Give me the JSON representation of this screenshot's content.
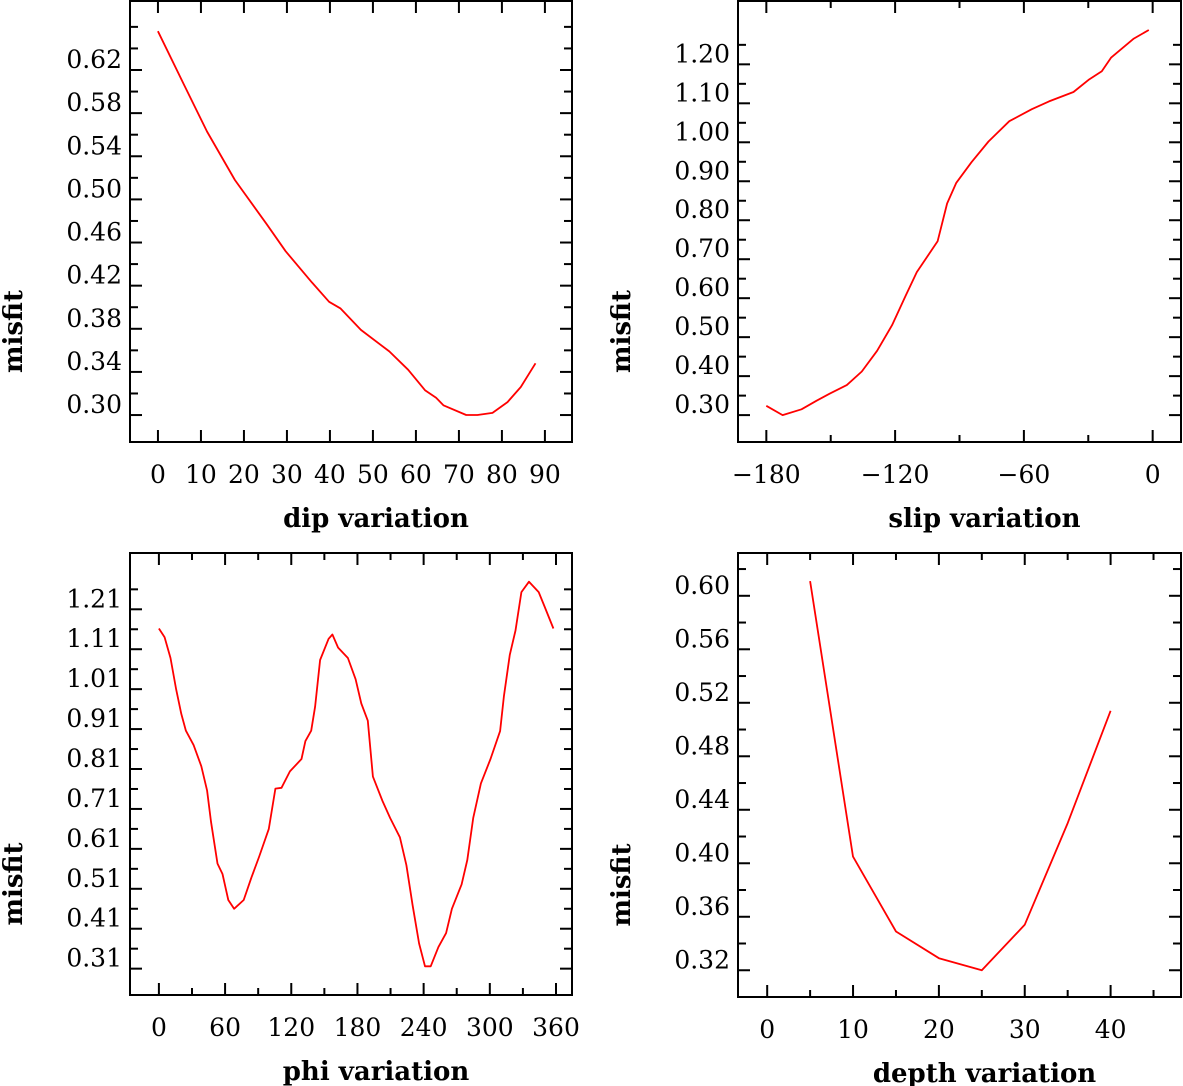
{
  "chart_data": [
    {
      "type": "line",
      "title": "",
      "xlabel": "dip    variation",
      "ylabel": "misfit",
      "xlim": [
        -6.5,
        96.3
      ],
      "ylim": [
        0.275,
        0.684
      ],
      "xticks": [
        0,
        10,
        20,
        30,
        40,
        50,
        60,
        70,
        80,
        90
      ],
      "xtick_labels": [
        "0",
        "10",
        "20",
        "30",
        "40",
        "50",
        "60",
        "70",
        "80",
        "90"
      ],
      "xminor": [],
      "yticks": [
        0.3,
        0.34,
        0.38,
        0.42,
        0.46,
        0.5,
        0.54,
        0.58,
        0.62
      ],
      "ytick_labels": [
        "0.30",
        "0.34",
        "0.38",
        "0.42",
        "0.46",
        "0.50",
        "0.54",
        "0.58",
        "0.62"
      ],
      "yminor": [
        0.32,
        0.36,
        0.4,
        0.44,
        0.48,
        0.52,
        0.56,
        0.6,
        0.64,
        0.66
      ],
      "grid": false,
      "line_color": "#ff0000",
      "series": [
        {
          "name": "dip",
          "x": [
            0,
            6.1,
            11.4,
            17.9,
            25.3,
            29.7,
            35.8,
            39.8,
            42.4,
            47.2,
            53.8,
            58.2,
            62.1,
            64.7,
            66.4,
            71.7,
            74.3,
            77.8,
            81.3,
            84.4,
            87.8
          ],
          "y": [
            0.656,
            0.606,
            0.563,
            0.518,
            0.477,
            0.452,
            0.423,
            0.405,
            0.399,
            0.379,
            0.359,
            0.342,
            0.323,
            0.316,
            0.309,
            0.3,
            0.3,
            0.302,
            0.312,
            0.326,
            0.348
          ]
        }
      ]
    },
    {
      "type": "line",
      "title": "",
      "xlabel": "slip   variation",
      "ylabel": "misfit",
      "xlim": [
        -193.2,
        13.2
      ],
      "ylim": [
        0.231,
        1.3625
      ],
      "xticks": [
        -180,
        -120,
        -60,
        0
      ],
      "xtick_labels": [
        "−180",
        "−120",
        "−60",
        "0"
      ],
      "xminor": [
        -150,
        -90,
        -30
      ],
      "yticks": [
        0.3,
        0.4,
        0.5,
        0.6,
        0.7,
        0.8,
        0.9,
        1.0,
        1.1,
        1.2
      ],
      "ytick_labels": [
        "0.30",
        "0.40",
        "0.50",
        "0.60",
        "0.70",
        "0.80",
        "0.90",
        "1.00",
        "1.10",
        "1.20"
      ],
      "yminor": [
        0.35,
        0.45,
        0.55,
        0.65,
        0.75,
        0.85,
        0.95,
        1.05,
        1.15,
        1.25
      ],
      "grid": false,
      "line_color": "#ff0000",
      "series": [
        {
          "name": "slip",
          "x": [
            -180,
            -172.4,
            -163.6,
            -156.6,
            -150.5,
            -142.5,
            -135.5,
            -128.4,
            -121.4,
            -115.2,
            -109.9,
            -100.2,
            -95.8,
            -91.5,
            -84.4,
            -76.5,
            -66.8,
            -56.3,
            -48.3,
            -36.9,
            -29.9,
            -23.7,
            -19.4,
            -8.8,
            -1.8
          ],
          "y": [
            0.324,
            0.3,
            0.315,
            0.337,
            0.355,
            0.377,
            0.412,
            0.465,
            0.531,
            0.605,
            0.667,
            0.746,
            0.843,
            0.896,
            0.949,
            1.002,
            1.054,
            1.085,
            1.105,
            1.129,
            1.16,
            1.182,
            1.217,
            1.266,
            1.288
          ]
        }
      ]
    },
    {
      "type": "line",
      "title": "",
      "xlabel": "phi    variation",
      "ylabel": "misfit",
      "xlim": [
        -26.2,
        374.5
      ],
      "ylim": [
        0.244,
        1.351
      ],
      "xticks": [
        0,
        60,
        120,
        180,
        240,
        300,
        360
      ],
      "xtick_labels": [
        "0",
        "60",
        "120",
        "180",
        "240",
        "300",
        "360"
      ],
      "xminor": [
        30,
        90,
        150,
        210,
        270,
        330
      ],
      "yticks": [
        0.31,
        0.41,
        0.51,
        0.61,
        0.71,
        0.81,
        0.91,
        1.01,
        1.11,
        1.21
      ],
      "ytick_labels": [
        "0.31",
        "0.41",
        "0.51",
        "0.61",
        "0.71",
        "0.81",
        "0.91",
        "1.01",
        "1.11",
        "1.21"
      ],
      "yminor": [
        0.36,
        0.46,
        0.56,
        0.66,
        0.76,
        0.86,
        0.96,
        1.06,
        1.16,
        1.26
      ],
      "grid": false,
      "line_color": "#ff0000",
      "series": [
        {
          "name": "phi",
          "x": [
            0,
            5.2,
            10.5,
            15.7,
            20.3,
            24.5,
            31.5,
            38.4,
            43.7,
            47.2,
            53.1,
            57.7,
            62.9,
            68.2,
            76.9,
            83.9,
            90.9,
            99.6,
            105.6,
            111.1,
            118.8,
            129.3,
            132.8,
            138.1,
            141.6,
            146.1,
            153.8,
            157.3,
            162.5,
            171.3,
            178.3,
            183.5,
            189.4,
            194.0,
            202.7,
            209.7,
            218.5,
            224.4,
            230.0,
            235.9,
            241.2,
            246.4,
            253.4,
            260.4,
            265.6,
            274.4,
            279.6,
            284.9,
            291.9,
            300.6,
            309.3,
            312.8,
            318.1,
            323.3,
            328.6,
            335.5,
            344.3,
            349.5,
            357.6
          ],
          "y": [
            1.162,
            1.14,
            1.088,
            1.009,
            0.948,
            0.906,
            0.87,
            0.817,
            0.756,
            0.678,
            0.573,
            0.547,
            0.482,
            0.46,
            0.482,
            0.538,
            0.591,
            0.66,
            0.761,
            0.763,
            0.804,
            0.835,
            0.88,
            0.906,
            0.966,
            1.083,
            1.136,
            1.147,
            1.114,
            1.088,
            1.035,
            0.974,
            0.931,
            0.791,
            0.73,
            0.687,
            0.639,
            0.569,
            0.469,
            0.373,
            0.316,
            0.316,
            0.364,
            0.399,
            0.46,
            0.521,
            0.582,
            0.687,
            0.774,
            0.835,
            0.905,
            0.992,
            1.096,
            1.157,
            1.253,
            1.279,
            1.253,
            1.218,
            1.162
          ]
        }
      ]
    },
    {
      "type": "line",
      "title": "",
      "xlabel": "depth  variation",
      "ylabel": "misfit",
      "xlim": [
        -3.4,
        48.2
      ],
      "ylim": [
        0.3,
        0.632
      ],
      "xticks": [
        0,
        10,
        20,
        30,
        40
      ],
      "xtick_labels": [
        "0",
        "10",
        "20",
        "30",
        "40"
      ],
      "xminor": [
        5,
        15,
        25,
        35,
        45
      ],
      "yticks": [
        0.32,
        0.36,
        0.4,
        0.44,
        0.48,
        0.52,
        0.56,
        0.6
      ],
      "ytick_labels": [
        "0.32",
        "0.36",
        "0.40",
        "0.44",
        "0.48",
        "0.52",
        "0.56",
        "0.60"
      ],
      "yminor": [
        0.34,
        0.38,
        0.42,
        0.46,
        0.5,
        0.54,
        0.58,
        0.62
      ],
      "grid": false,
      "line_color": "#ff0000",
      "series": [
        {
          "name": "depth",
          "x": [
            5,
            10,
            15,
            20,
            25,
            30,
            35,
            40
          ],
          "y": [
            0.611,
            0.405,
            0.349,
            0.329,
            0.32,
            0.354,
            0.43,
            0.514
          ]
        }
      ]
    }
  ]
}
